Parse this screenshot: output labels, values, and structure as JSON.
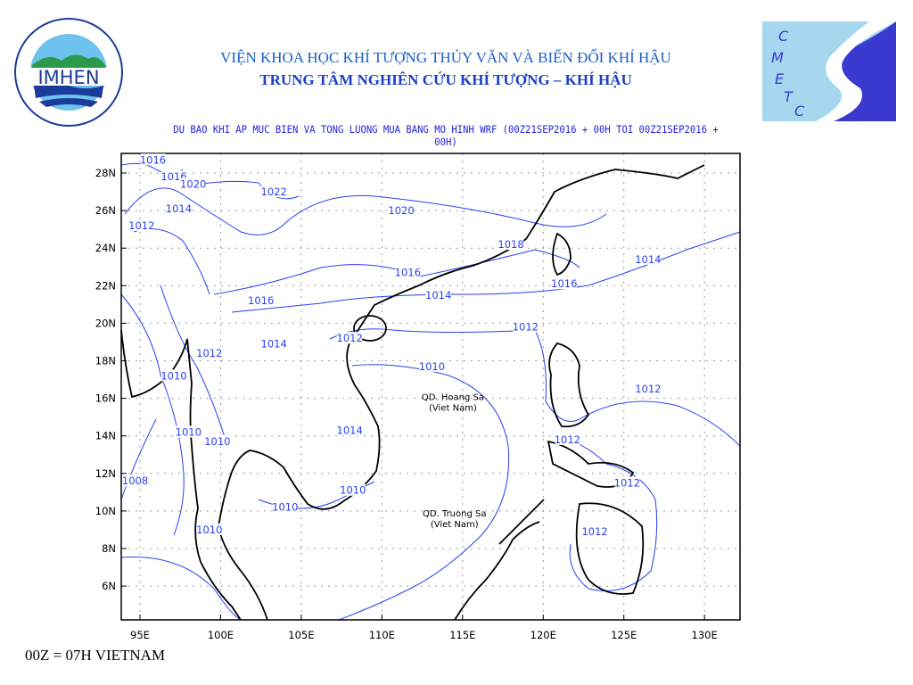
{
  "header": {
    "line1": "VIỆN KHOA HỌC KHÍ TƯỢNG THỦY VĂN VÀ BIẾN ĐỔI KHÍ HẬU",
    "line2": "TRUNG TÂM NGHIÊN CỨU KHÍ TƯỢNG – KHÍ HẬU",
    "subtitle": "DU BAO KHI AP MUC BIEN VA TONG LUONG MUA BANG MO HINH WRF (00Z21SEP2016 + 00H TOI 00Z21SEP2016 + 00H)"
  },
  "logos": {
    "left": {
      "name": "IMHEN",
      "ring_text": "VIEN KHOA HOC · KHI TUONG THUY VAN VA BIEN DOI KHI HAU"
    },
    "right": {
      "letters": "CMETC"
    }
  },
  "footer": "00Z = 07H VIETNAM",
  "map": {
    "lon_ticks": [
      "95E",
      "100E",
      "105E",
      "110E",
      "115E",
      "120E",
      "125E",
      "130E"
    ],
    "lat_ticks": [
      "28N",
      "26N",
      "24N",
      "22N",
      "20N",
      "18N",
      "16N",
      "14N",
      "12N",
      "10N",
      "8N",
      "6N"
    ],
    "lon_range": [
      93.8,
      132.2
    ],
    "lat_range": [
      4.2,
      29.0
    ],
    "contour_color": "#2a3ff0",
    "coast_color": "#000000",
    "isobar_labels": [
      {
        "text": "1016",
        "lon": 95.8,
        "lat": 28.7
      },
      {
        "text": "1016",
        "lon": 97.1,
        "lat": 27.8
      },
      {
        "text": "1020",
        "lon": 98.3,
        "lat": 27.4
      },
      {
        "text": "1014",
        "lon": 97.4,
        "lat": 26.1
      },
      {
        "text": "1012",
        "lon": 95.1,
        "lat": 25.2
      },
      {
        "text": "1022",
        "lon": 103.3,
        "lat": 27.0
      },
      {
        "text": "1020",
        "lon": 111.2,
        "lat": 26.0
      },
      {
        "text": "1018",
        "lon": 118.0,
        "lat": 24.2
      },
      {
        "text": "1014",
        "lon": 126.5,
        "lat": 23.4
      },
      {
        "text": "1016",
        "lon": 111.6,
        "lat": 22.7
      },
      {
        "text": "1016",
        "lon": 121.3,
        "lat": 22.1
      },
      {
        "text": "1014",
        "lon": 113.5,
        "lat": 21.5
      },
      {
        "text": "1016",
        "lon": 102.5,
        "lat": 21.2
      },
      {
        "text": "1014",
        "lon": 103.3,
        "lat": 18.9
      },
      {
        "text": "1012",
        "lon": 108.0,
        "lat": 19.2
      },
      {
        "text": "1012",
        "lon": 118.9,
        "lat": 19.8
      },
      {
        "text": "1012",
        "lon": 99.3,
        "lat": 18.4
      },
      {
        "text": "1010",
        "lon": 113.1,
        "lat": 17.7
      },
      {
        "text": "1010",
        "lon": 97.1,
        "lat": 17.2
      },
      {
        "text": "1012",
        "lon": 126.5,
        "lat": 16.5
      },
      {
        "text": "1014",
        "lon": 108.0,
        "lat": 14.3
      },
      {
        "text": "1010",
        "lon": 98.0,
        "lat": 14.2
      },
      {
        "text": "1010",
        "lon": 99.8,
        "lat": 13.7
      },
      {
        "text": "1012",
        "lon": 121.5,
        "lat": 13.8
      },
      {
        "text": "1012",
        "lon": 125.2,
        "lat": 11.5
      },
      {
        "text": "1008",
        "lon": 94.7,
        "lat": 11.6
      },
      {
        "text": "1010",
        "lon": 104.0,
        "lat": 10.2
      },
      {
        "text": "1010",
        "lon": 108.2,
        "lat": 11.1
      },
      {
        "text": "1012",
        "lon": 123.2,
        "lat": 8.9
      },
      {
        "text": "1010",
        "lon": 99.3,
        "lat": 9.0
      }
    ],
    "places": [
      {
        "line1": "QD. Hoang Sa",
        "line2": "(Viet Nam)",
        "lon": 114.4,
        "lat": 15.9
      },
      {
        "line1": "QD. Truong Sa",
        "line2": "(Viet Nam)",
        "lon": 114.5,
        "lat": 9.7
      }
    ]
  }
}
